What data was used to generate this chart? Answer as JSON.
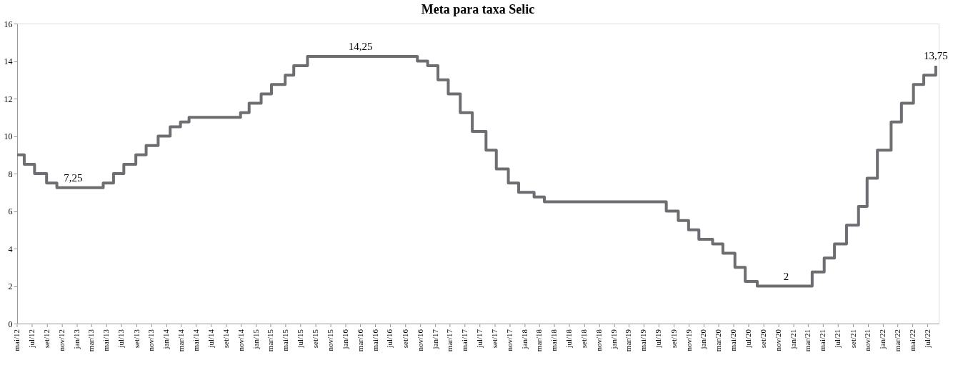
{
  "chart_data": {
    "type": "step",
    "title": "Meta para taxa Selic",
    "x": [
      "2012-05-01",
      "2012-05-30",
      "2012-07-11",
      "2012-08-29",
      "2012-10-10",
      "2013-04-17",
      "2013-05-29",
      "2013-07-10",
      "2013-08-28",
      "2013-10-09",
      "2013-11-27",
      "2014-01-15",
      "2014-02-26",
      "2014-04-02",
      "2014-10-29",
      "2014-12-03",
      "2015-01-21",
      "2015-03-04",
      "2015-04-29",
      "2015-06-03",
      "2015-07-29",
      "2016-10-19",
      "2016-11-30",
      "2017-01-11",
      "2017-02-22",
      "2017-04-12",
      "2017-05-31",
      "2017-07-26",
      "2017-09-06",
      "2017-10-25",
      "2017-12-06",
      "2018-02-07",
      "2018-03-21",
      "2019-07-31",
      "2019-09-18",
      "2019-10-30",
      "2019-12-11",
      "2020-02-05",
      "2020-03-18",
      "2020-05-06",
      "2020-06-17",
      "2020-08-05",
      "2021-03-17",
      "2021-05-05",
      "2021-06-16",
      "2021-08-04",
      "2021-09-22",
      "2021-10-27",
      "2021-12-08",
      "2022-02-02",
      "2022-03-16",
      "2022-05-04",
      "2022-06-15",
      "2022-08-03"
    ],
    "series": [
      {
        "color": "#6d6d72",
        "values": [
          9.0,
          8.5,
          8.0,
          7.5,
          7.25,
          7.5,
          8.0,
          8.5,
          9.0,
          9.5,
          10.0,
          10.5,
          10.75,
          11.0,
          11.25,
          11.75,
          12.25,
          12.75,
          13.25,
          13.75,
          14.25,
          14.0,
          13.75,
          13.0,
          12.25,
          11.25,
          10.25,
          9.25,
          8.25,
          7.5,
          7.0,
          6.75,
          6.5,
          6.0,
          5.5,
          5.0,
          4.5,
          4.25,
          3.75,
          3.0,
          2.25,
          2.0,
          2.75,
          3.5,
          4.25,
          5.25,
          6.25,
          7.75,
          9.25,
          10.75,
          11.75,
          12.75,
          13.25,
          13.75
        ]
      }
    ],
    "xlim": [
      "2012-05-01",
      "2022-08-15"
    ],
    "xticks": [
      {
        "value": "2012-05",
        "label": "mai/12"
      },
      {
        "value": "2012-07",
        "label": "jul/12"
      },
      {
        "value": "2012-09",
        "label": "set/12"
      },
      {
        "value": "2012-11",
        "label": "nov/12"
      },
      {
        "value": "2013-01",
        "label": "jan/13"
      },
      {
        "value": "2013-03",
        "label": "mar/13"
      },
      {
        "value": "2013-05",
        "label": "mai/13"
      },
      {
        "value": "2013-07",
        "label": "jul/13"
      },
      {
        "value": "2013-09",
        "label": "set/13"
      },
      {
        "value": "2013-11",
        "label": "nov/13"
      },
      {
        "value": "2014-01",
        "label": "jan/14"
      },
      {
        "value": "2014-03",
        "label": "mar/14"
      },
      {
        "value": "2014-05",
        "label": "mai/14"
      },
      {
        "value": "2014-07",
        "label": "jul/14"
      },
      {
        "value": "2014-09",
        "label": "set/14"
      },
      {
        "value": "2014-11",
        "label": "nov/14"
      },
      {
        "value": "2015-01",
        "label": "jan/15"
      },
      {
        "value": "2015-03",
        "label": "mar/15"
      },
      {
        "value": "2015-05",
        "label": "mai/15"
      },
      {
        "value": "2015-07",
        "label": "jul/15"
      },
      {
        "value": "2015-09",
        "label": "set/15"
      },
      {
        "value": "2015-11",
        "label": "nov/15"
      },
      {
        "value": "2016-01",
        "label": "jan/16"
      },
      {
        "value": "2016-03",
        "label": "mar/16"
      },
      {
        "value": "2016-05",
        "label": "mai/16"
      },
      {
        "value": "2016-07",
        "label": "jul/16"
      },
      {
        "value": "2016-09",
        "label": "set/16"
      },
      {
        "value": "2016-11",
        "label": "nov/16"
      },
      {
        "value": "2017-01",
        "label": "jan/17"
      },
      {
        "value": "2017-03",
        "label": "mar/17"
      },
      {
        "value": "2017-05",
        "label": "mai/17"
      },
      {
        "value": "2017-07",
        "label": "jul/17"
      },
      {
        "value": "2017-09",
        "label": "set/17"
      },
      {
        "value": "2017-11",
        "label": "nov/17"
      },
      {
        "value": "2018-01",
        "label": "jan/18"
      },
      {
        "value": "2018-03",
        "label": "mar/18"
      },
      {
        "value": "2018-05",
        "label": "mai/18"
      },
      {
        "value": "2018-07",
        "label": "jul/18"
      },
      {
        "value": "2018-09",
        "label": "set/18"
      },
      {
        "value": "2018-11",
        "label": "nov/18"
      },
      {
        "value": "2019-01",
        "label": "jan/19"
      },
      {
        "value": "2019-03",
        "label": "mar/19"
      },
      {
        "value": "2019-05",
        "label": "mai/19"
      },
      {
        "value": "2019-07",
        "label": "jul/19"
      },
      {
        "value": "2019-09",
        "label": "set/19"
      },
      {
        "value": "2019-11",
        "label": "nov/19"
      },
      {
        "value": "2020-01",
        "label": "jan/20"
      },
      {
        "value": "2020-03",
        "label": "mar/20"
      },
      {
        "value": "2020-05",
        "label": "mai/20"
      },
      {
        "value": "2020-07",
        "label": "jul/20"
      },
      {
        "value": "2020-09",
        "label": "set/20"
      },
      {
        "value": "2020-11",
        "label": "nov/20"
      },
      {
        "value": "2021-01",
        "label": "jan/21"
      },
      {
        "value": "2021-03",
        "label": "mar/21"
      },
      {
        "value": "2021-05",
        "label": "mai/21"
      },
      {
        "value": "2021-07",
        "label": "jul/21"
      },
      {
        "value": "2021-09",
        "label": "set/21"
      },
      {
        "value": "2021-11",
        "label": "nov/21"
      },
      {
        "value": "2022-01",
        "label": "jan/22"
      },
      {
        "value": "2022-03",
        "label": "mar/22"
      },
      {
        "value": "2022-05",
        "label": "mai/22"
      },
      {
        "value": "2022-07",
        "label": "jul/22"
      }
    ],
    "ylim": [
      0,
      16
    ],
    "yticks": [
      0,
      2,
      4,
      6,
      8,
      10,
      12,
      14,
      16
    ],
    "grid": false,
    "annotations": [
      {
        "text": "7,25",
        "x": "2012-12-15",
        "y": 7.25
      },
      {
        "text": "14,25",
        "x": "2016-03-01",
        "y": 14.25
      },
      {
        "text": "2",
        "x": "2020-12-01",
        "y": 2.0
      },
      {
        "text": "13,75",
        "x": "2022-08-03",
        "y": 13.75
      }
    ]
  }
}
